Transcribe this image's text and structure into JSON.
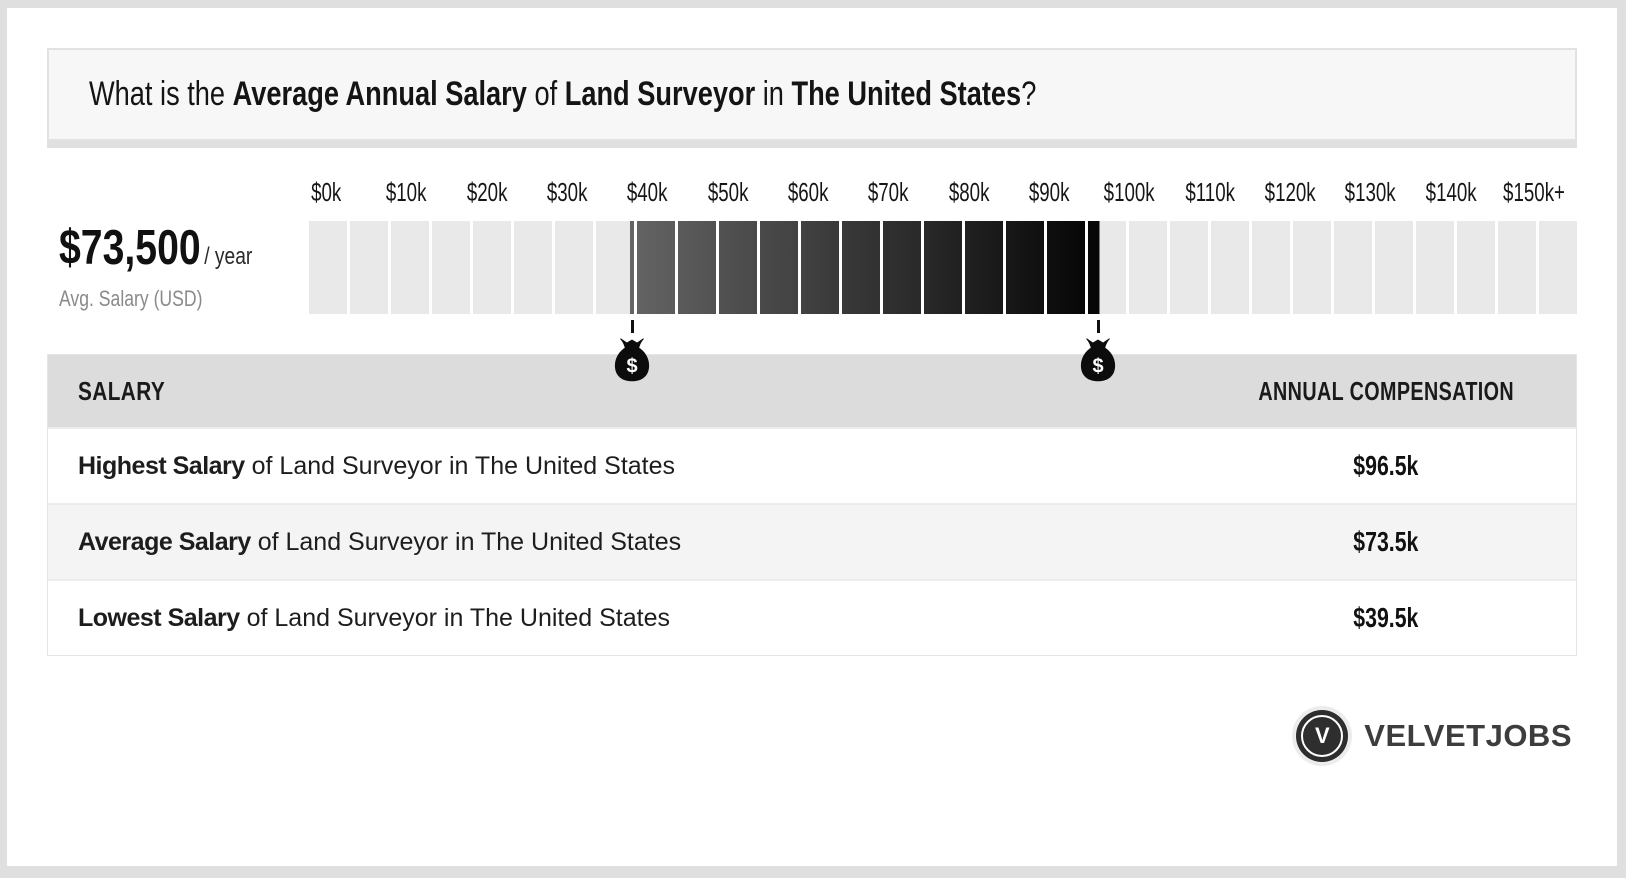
{
  "title": {
    "parts": [
      {
        "text": "What is the ",
        "bold": false
      },
      {
        "text": "Average Annual Salary",
        "bold": true
      },
      {
        "text": " of ",
        "bold": false
      },
      {
        "text": "Land Surveyor",
        "bold": true
      },
      {
        "text": " in ",
        "bold": false
      },
      {
        "text": "The United States",
        "bold": true
      },
      {
        "text": "?",
        "bold": false
      }
    ]
  },
  "summary": {
    "avg_salary_display": "$73,500",
    "per_label": "/ year",
    "caption": "Avg. Salary (USD)"
  },
  "chart_data": {
    "type": "bar",
    "subtype": "salary-range-scale",
    "title": "What is the Average Annual Salary of Land Surveyor in The United States?",
    "unit": "USD per year",
    "axis_min": 0,
    "axis_max": 155000,
    "segment_size": 5000,
    "segment_count": 31,
    "tick_labels": [
      "$0k",
      "$10k",
      "$20k",
      "$30k",
      "$40k",
      "$50k",
      "$60k",
      "$70k",
      "$80k",
      "$90k",
      "$100k",
      "$110k",
      "$120k",
      "$130k",
      "$140k",
      "$150k+"
    ],
    "lowest_salary": 39500,
    "average_salary": 73500,
    "highest_salary": 96500,
    "highlight_range": [
      39500,
      96500
    ],
    "gradient_from_value": 39500,
    "gradient_to_value": 95000,
    "colors": {
      "segment_light": "#e9e9e9",
      "gradient_from_color": "#646464",
      "gradient_to_color": "#070707",
      "marker_color": "#101010"
    },
    "grid": false,
    "legend": "none"
  },
  "salary_table": {
    "headers": [
      "SALARY",
      "ANNUAL COMPENSATION"
    ],
    "rows": [
      {
        "label_bold": "Highest Salary",
        "label_rest": " of Land Surveyor in The United States",
        "value": "$96.5k"
      },
      {
        "label_bold": "Average Salary",
        "label_rest": " of Land Surveyor in The United States",
        "value": "$73.5k"
      },
      {
        "label_bold": "Lowest Salary",
        "label_rest": " of Land Surveyor in The United States",
        "value": "$39.5k"
      }
    ]
  },
  "footer": {
    "brand": "VELVETJOBS",
    "logo_letter": "V"
  }
}
